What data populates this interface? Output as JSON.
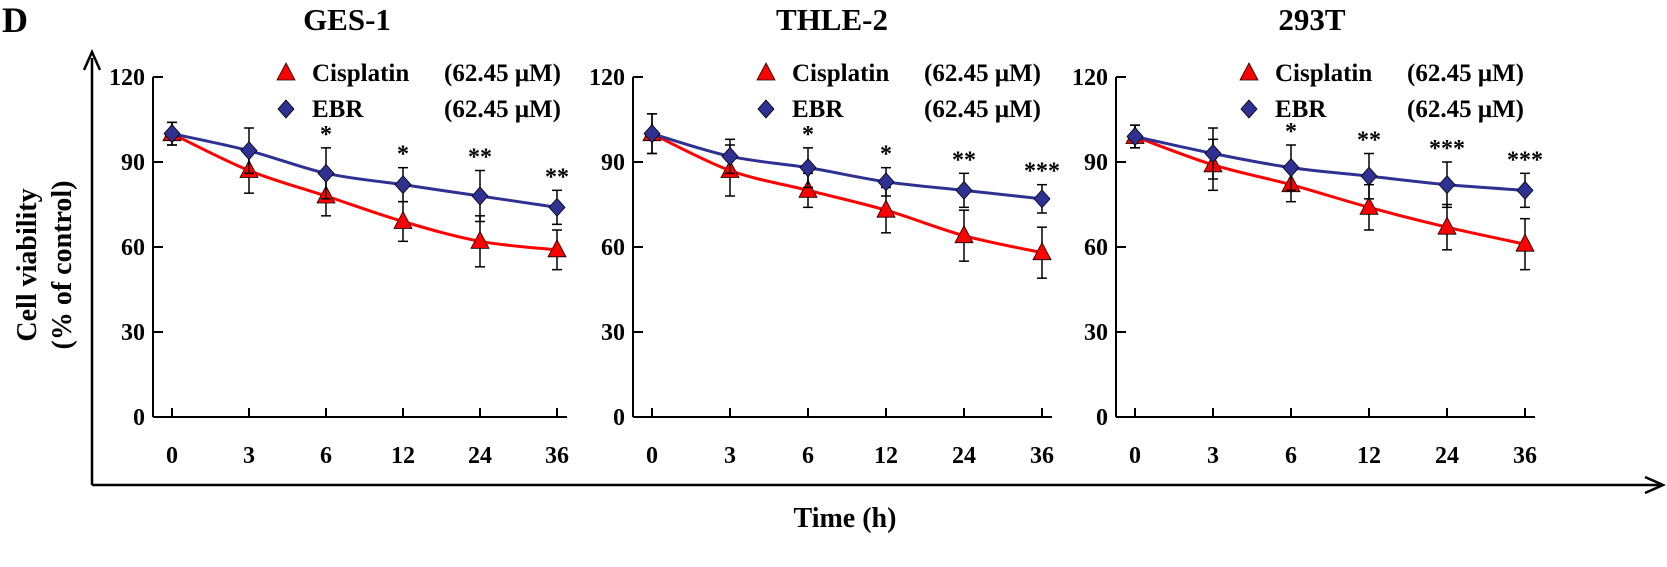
{
  "figure": {
    "panel_letter": "D",
    "x_axis_label": "Time (h)",
    "y_axis_label_line1": "Cell viability",
    "y_axis_label_line2": "(% of control)"
  },
  "colors": {
    "cisplatin": "#ff0000",
    "ebr": "#2e3192",
    "axis": "#000000"
  },
  "chart_data": [
    {
      "type": "line",
      "title": "GES-1",
      "categories": [
        "0",
        "3",
        "6",
        "12",
        "24",
        "36"
      ],
      "yticks": [
        "0",
        "30",
        "60",
        "90",
        "120"
      ],
      "ylim": [
        0,
        120
      ],
      "xlabel": "Time (h)",
      "ylabel": "Cell viability (% of control)",
      "series": [
        {
          "name": "Cisplatin",
          "dose": "(62.45 μM)",
          "marker": "triangle",
          "values": [
            100,
            87,
            78,
            69,
            62,
            59
          ],
          "errors": [
            4,
            8,
            7,
            7,
            9,
            7
          ]
        },
        {
          "name": "EBR",
          "dose": "(62.45 μM)",
          "marker": "diamond",
          "values": [
            100,
            94,
            86,
            82,
            78,
            74
          ],
          "errors": [
            4,
            8,
            9,
            6,
            9,
            6
          ]
        }
      ],
      "significance": [
        "",
        "",
        "*",
        "*",
        "**",
        "**"
      ]
    },
    {
      "type": "line",
      "title": "THLE-2",
      "categories": [
        "0",
        "3",
        "6",
        "12",
        "24",
        "36"
      ],
      "yticks": [
        "0",
        "30",
        "60",
        "90",
        "120"
      ],
      "ylim": [
        0,
        120
      ],
      "xlabel": "Time (h)",
      "ylabel": "Cell viability (% of control)",
      "series": [
        {
          "name": "Cisplatin",
          "dose": "(62.45 μM)",
          "marker": "triangle",
          "values": [
            100,
            87,
            80,
            73,
            64,
            58
          ],
          "errors": [
            7,
            9,
            6,
            8,
            9,
            9
          ]
        },
        {
          "name": "EBR",
          "dose": "(62.45 μM)",
          "marker": "diamond",
          "values": [
            100,
            92,
            88,
            83,
            80,
            77
          ],
          "errors": [
            7,
            6,
            7,
            5,
            6,
            5
          ]
        }
      ],
      "significance": [
        "",
        "",
        "*",
        "*",
        "**",
        "***"
      ]
    },
    {
      "type": "line",
      "title": "293T",
      "categories": [
        "0",
        "3",
        "6",
        "12",
        "24",
        "36"
      ],
      "yticks": [
        "0",
        "30",
        "60",
        "90",
        "120"
      ],
      "ylim": [
        0,
        120
      ],
      "xlabel": "Time (h)",
      "ylabel": "Cell viability (% of control)",
      "series": [
        {
          "name": "Cisplatin",
          "dose": "(62.45 μM)",
          "marker": "triangle",
          "values": [
            99,
            89,
            82,
            74,
            67,
            61
          ],
          "errors": [
            4,
            9,
            6,
            8,
            8,
            9
          ]
        },
        {
          "name": "EBR",
          "dose": "(62.45 μM)",
          "marker": "diamond",
          "values": [
            99,
            93,
            88,
            85,
            82,
            80
          ],
          "errors": [
            4,
            9,
            8,
            8,
            8,
            6
          ]
        }
      ],
      "significance": [
        "",
        "",
        "*",
        "**",
        "***",
        "***"
      ]
    }
  ]
}
